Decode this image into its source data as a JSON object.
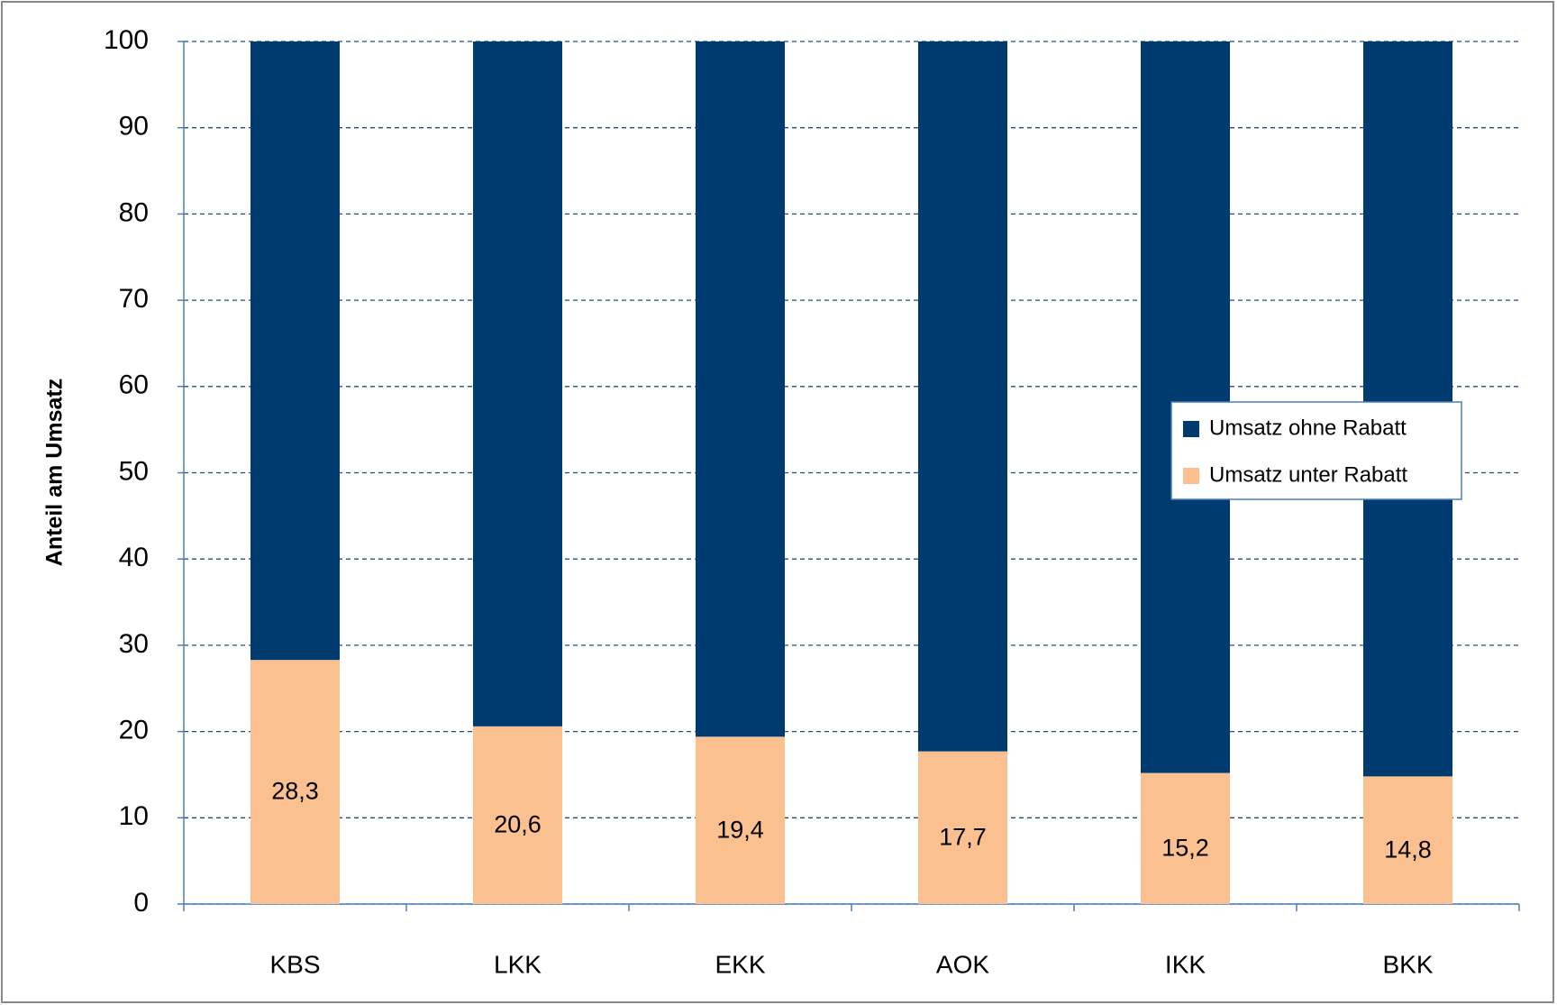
{
  "chart_data": {
    "type": "stacked_bar",
    "y_label": "Anteil am Umsatz",
    "categories": [
      "KBS",
      "LKK",
      "EKK",
      "AOK",
      "IKK",
      "BKK"
    ],
    "series": [
      {
        "name": "Umsatz unter Rabatt",
        "color": "#fac090",
        "values": [
          28.3,
          20.6,
          19.4,
          17.7,
          15.2,
          14.8
        ],
        "value_labels": [
          "28,3",
          "20,6",
          "19,4",
          "17,7",
          "15,2",
          "14,8"
        ]
      },
      {
        "name": "Umsatz ohne Rabatt",
        "color": "#003b6f",
        "values": [
          71.7,
          79.4,
          80.6,
          82.3,
          84.8,
          85.2
        ]
      }
    ],
    "ylim": [
      0,
      100
    ],
    "yticks": [
      0,
      10,
      20,
      30,
      40,
      50,
      60,
      70,
      80,
      90,
      100
    ],
    "grid": true,
    "legend": "right"
  }
}
